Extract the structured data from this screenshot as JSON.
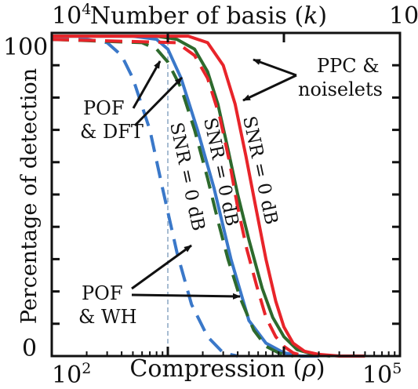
{
  "chart_data": {
    "type": "line",
    "title": "",
    "xlabel": "Compression (",
    "xlabel_symbol": "ρ",
    "xlabel_suffix": ")",
    "top_xlabel": "Number of basis (",
    "top_xlabel_symbol": "k",
    "top_xlabel_suffix": ")",
    "ylabel": "Percentage of detection",
    "x_scale": "log",
    "xlim": [
      100,
      100000
    ],
    "ylim": [
      0,
      100
    ],
    "top_xlim": [
      10000,
      10
    ],
    "bottom_ticks": [
      {
        "base": "10",
        "exp": "2"
      },
      {
        "base": "10",
        "exp": "5"
      }
    ],
    "top_ticks": [
      {
        "base": "10",
        "exp": "4"
      },
      {
        "base": "10",
        "exp": ""
      }
    ],
    "y_ticks": [
      "0",
      "100"
    ],
    "reference_line_x": 1000,
    "series": [
      {
        "color": "#3a78c9",
        "style": "solid",
        "x": [
          100,
          500,
          800,
          1000,
          1300,
          1800,
          2500,
          3500,
          5000,
          7000,
          10000,
          14000,
          20000
        ],
        "y": [
          99,
          99,
          98,
          95,
          86,
          70,
          52,
          30,
          11,
          4,
          1,
          0,
          0
        ]
      },
      {
        "color": "#3a78c9",
        "style": "dashed",
        "x": [
          100,
          200,
          300,
          400,
          500,
          700,
          900,
          1200,
          1600,
          2200,
          3000,
          4000
        ],
        "y": [
          98,
          98,
          97,
          93,
          86,
          70,
          52,
          32,
          16,
          6,
          1,
          0
        ]
      },
      {
        "color": "#2d6a2d",
        "style": "solid",
        "x": [
          100,
          800,
          1200,
          1700,
          2200,
          2700,
          3300,
          4000,
          5000,
          6500,
          8000,
          10000,
          13000,
          18000,
          25000
        ],
        "y": [
          99,
          99,
          98,
          95,
          88,
          78,
          64,
          50,
          36,
          21,
          12,
          6,
          2,
          0.5,
          0
        ]
      },
      {
        "color": "#2d6a2d",
        "style": "dashed",
        "x": [
          100,
          600,
          800,
          1000,
          1300,
          1700,
          2200,
          2700,
          3300,
          4200,
          5500,
          7000,
          9000,
          12000
        ],
        "y": [
          98,
          97,
          95,
          91,
          83,
          70,
          55,
          42,
          30,
          18,
          8,
          3,
          1,
          0
        ]
      },
      {
        "color": "#e8242a",
        "style": "solid",
        "x": [
          100,
          1500,
          2200,
          3000,
          3800,
          4700,
          5800,
          7000,
          8500,
          10000,
          12000,
          15000,
          20000,
          30000,
          50000
        ],
        "y": [
          99,
          99,
          97,
          90,
          78,
          62,
          45,
          30,
          17,
          9,
          4,
          1.5,
          0.5,
          0,
          0
        ]
      },
      {
        "color": "#e8242a",
        "style": "dashed",
        "x": [
          100,
          1200,
          1700,
          2200,
          2800,
          3400,
          4000,
          4800,
          5800,
          7000,
          8500,
          10000,
          12000,
          15000
        ],
        "y": [
          98,
          97,
          93,
          86,
          74,
          60,
          46,
          33,
          22,
          12,
          6,
          3,
          1,
          0
        ]
      }
    ],
    "annotations": [
      {
        "text": "POF",
        "name": "pof-dft-label"
      },
      {
        "text": "& DFT",
        "name": "pof-dft-label"
      },
      {
        "text": "PPC &",
        "name": "ppc-noiselets-label"
      },
      {
        "text": "noiselets",
        "name": "ppc-noiselets-label"
      },
      {
        "text": "POF",
        "name": "pof-wh-label"
      },
      {
        "text": "& WH",
        "name": "pof-wh-label"
      },
      {
        "text": "SNR = 0 dB",
        "name": "snr-label-blue"
      },
      {
        "text": "SNR = 0 dB",
        "name": "snr-label-green"
      },
      {
        "text": "SNR = 0 dB",
        "name": "snr-label-red"
      }
    ]
  }
}
